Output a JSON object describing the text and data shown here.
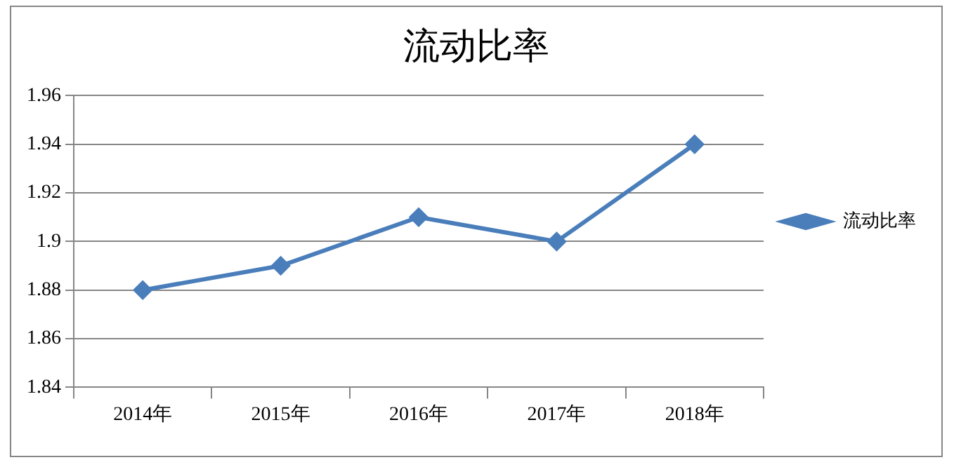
{
  "chart_data": {
    "type": "line",
    "title": "流动比率",
    "categories": [
      "2014年",
      "2015年",
      "2016年",
      "2017年",
      "2018年"
    ],
    "series": [
      {
        "name": "流动比率",
        "color": "#4a7ebb",
        "values": [
          1.88,
          1.89,
          1.91,
          1.9,
          1.94
        ]
      }
    ],
    "ylim": [
      1.84,
      1.96
    ],
    "yticks": [
      1.84,
      1.86,
      1.88,
      1.9,
      1.92,
      1.94,
      1.96
    ],
    "grid": "y",
    "legend": "right",
    "marker": "diamond",
    "line_style": "solid"
  }
}
